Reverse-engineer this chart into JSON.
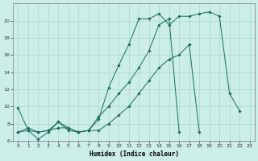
{
  "xlabel": "Humidex (Indice chaleur)",
  "bg_color": "#cceee8",
  "grid_color": "#aad4ce",
  "line_color": "#1a6b5a",
  "series1_x": [
    0,
    1,
    2,
    3,
    4,
    5,
    6,
    7,
    8,
    9,
    10,
    11,
    12,
    13,
    14,
    15,
    16,
    17,
    18,
    19,
    20,
    21,
    22,
    23
  ],
  "series1_y": [
    9.8,
    7.2,
    6.2,
    7.0,
    8.2,
    7.2,
    7.0,
    7.2,
    8.5,
    12.2,
    14.8,
    17.2,
    20.2,
    20.2,
    20.8,
    19.5,
    20.5,
    20.5,
    20.8,
    21.0,
    20.5,
    11.5,
    9.5,
    null
  ],
  "series2_x": [
    0,
    1,
    2,
    3,
    4,
    5,
    6,
    7,
    8,
    9,
    10,
    11,
    12,
    13,
    14,
    15,
    16,
    17,
    18,
    19,
    20,
    21,
    22,
    23
  ],
  "series2_y": [
    7.0,
    7.5,
    7.0,
    7.2,
    8.2,
    7.5,
    7.0,
    7.2,
    8.8,
    10.0,
    11.5,
    12.8,
    14.5,
    16.5,
    19.5,
    20.2,
    7.0,
    null,
    null,
    null,
    null,
    null,
    null,
    null
  ],
  "series3_x": [
    0,
    1,
    2,
    3,
    4,
    5,
    6,
    7,
    8,
    9,
    10,
    11,
    12,
    13,
    14,
    15,
    16,
    17,
    18,
    19,
    20,
    21,
    22,
    23
  ],
  "series3_y": [
    7.0,
    7.2,
    7.0,
    7.2,
    7.5,
    7.5,
    7.0,
    7.2,
    7.2,
    8.0,
    9.0,
    10.0,
    11.5,
    13.0,
    14.5,
    15.5,
    16.0,
    17.2,
    7.0,
    null,
    null,
    null,
    null,
    null
  ],
  "ylim": [
    6,
    22
  ],
  "xlim": [
    -0.5,
    23.5
  ],
  "yticks": [
    6,
    8,
    10,
    12,
    14,
    16,
    18,
    20
  ],
  "xticks": [
    0,
    1,
    2,
    3,
    4,
    5,
    6,
    7,
    8,
    9,
    10,
    11,
    12,
    13,
    14,
    15,
    16,
    17,
    18,
    19,
    20,
    21,
    22,
    23
  ]
}
